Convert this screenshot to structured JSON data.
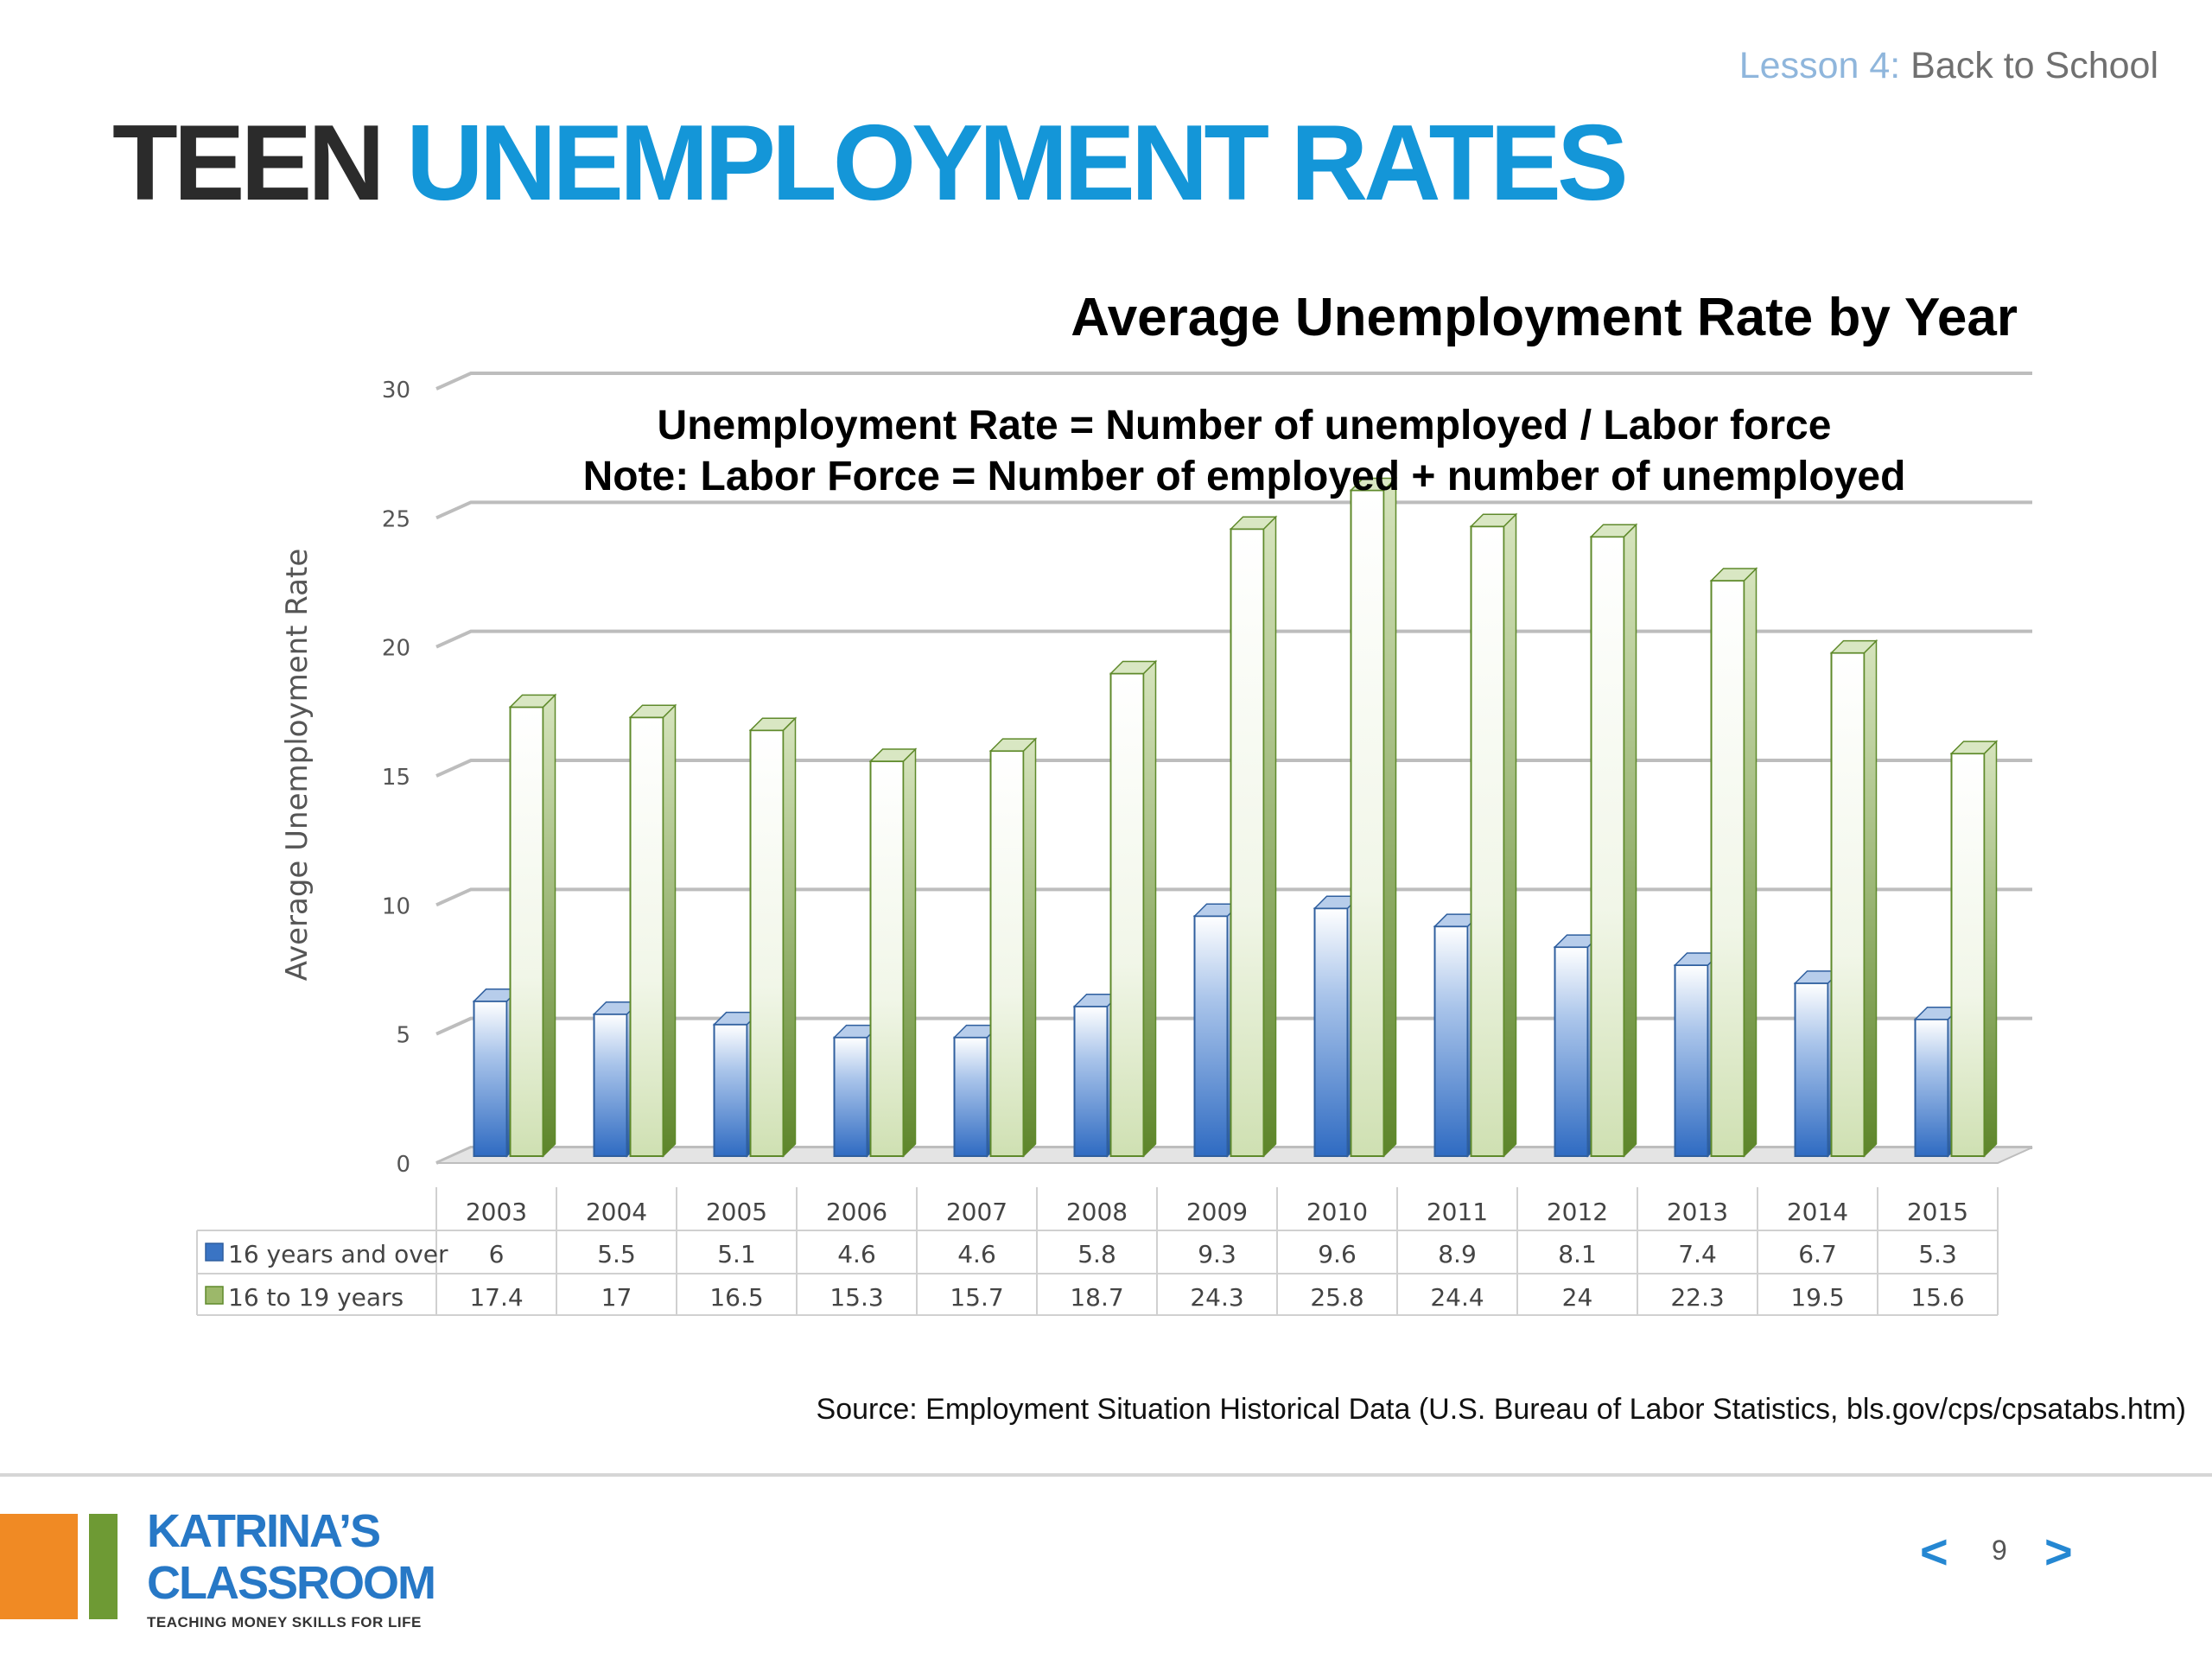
{
  "header": {
    "lesson_number": "Lesson 4",
    "lesson_sep": ": ",
    "lesson_title": "Back to School"
  },
  "slide_title": {
    "part1": "TEEN",
    "part2": "UNEMPLOYMENT RATES"
  },
  "chart_data": {
    "type": "bar",
    "title": "Average Unemployment Rate by Year",
    "annotations": [
      "Unemployment Rate = Number of unemployed / Labor force",
      "Note: Labor Force = Number of employed + number of unemployed"
    ],
    "xlabel": "",
    "ylabel": "Average Unemployment Rate",
    "ylim": [
      0,
      30
    ],
    "yticks": [
      0,
      5,
      10,
      15,
      20,
      25,
      30
    ],
    "grid": true,
    "legend": "data-table",
    "categories": [
      "2003",
      "2004",
      "2005",
      "2006",
      "2007",
      "2008",
      "2009",
      "2010",
      "2011",
      "2012",
      "2013",
      "2014",
      "2015"
    ],
    "series": [
      {
        "name": "16 years and over",
        "color": "#3a74c4",
        "values": [
          6,
          5.5,
          5.1,
          4.6,
          4.6,
          5.8,
          9.3,
          9.6,
          8.9,
          8.1,
          7.4,
          6.7,
          5.3
        ],
        "labels": [
          "6",
          "5.5",
          "5.1",
          "4.6",
          "4.6",
          "5.8",
          "9.3",
          "9.6",
          "8.9",
          "8.1",
          "7.4",
          "6.7",
          "5.3"
        ]
      },
      {
        "name": "16 to 19 years",
        "color": "#6e9a34",
        "values": [
          17.4,
          17,
          16.5,
          15.3,
          15.7,
          18.7,
          24.3,
          25.8,
          24.4,
          24,
          22.3,
          19.5,
          15.6
        ],
        "labels": [
          "17.4",
          "17",
          "16.5",
          "15.3",
          "15.7",
          "18.7",
          "24.3",
          "25.8",
          "24.4",
          "24",
          "22.3",
          "19.5",
          "15.6"
        ]
      }
    ]
  },
  "source": "Source: Employment Situation Historical Data (U.S. Bureau of Labor Statistics, bls.gov/cps/cpsatabs.htm)",
  "logo": {
    "line1": "KATRINA’S",
    "line2": "CLASSROOM",
    "tagline": "TEACHING MONEY SKILLS FOR LIFE"
  },
  "navigation": {
    "prev_icon": "chevron-left-icon",
    "next_icon": "chevron-right-icon",
    "prev_glyph": "<",
    "next_glyph": ">",
    "page_number": "9"
  }
}
